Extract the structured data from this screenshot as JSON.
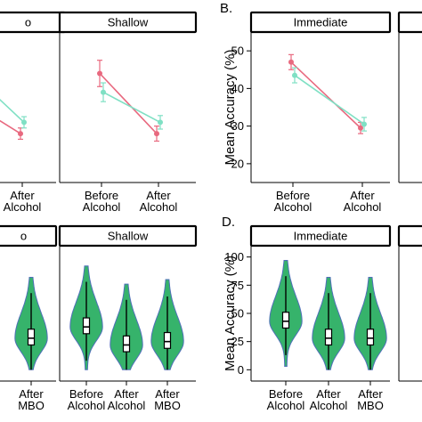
{
  "colors": {
    "red": "#e8697f",
    "teal": "#7fe0c4",
    "violin_fill": "#36b36b",
    "violin_stroke": "#4f6fb8"
  },
  "panels": {
    "B": {
      "letter": "B."
    },
    "D": {
      "letter": "D."
    }
  },
  "chart_data": [
    {
      "id": "top-left",
      "type": "line",
      "strip": "o",
      "categories": [
        "Before\nAlcohol",
        "After\nAlcohol"
      ],
      "ylim": [
        15,
        55
      ],
      "series": [
        {
          "color": "red",
          "values": [
            null,
            28
          ],
          "errors": [
            null,
            1.5
          ]
        },
        {
          "color": "teal",
          "values": [
            null,
            31
          ],
          "errors": [
            null,
            1.5
          ]
        }
      ],
      "x_labels": [
        "",
        "After\nAlcohol"
      ]
    },
    {
      "id": "top-shallow",
      "type": "line",
      "strip": "Shallow",
      "categories": [
        "Before\nAlcohol",
        "After\nAlcohol"
      ],
      "ylim": [
        15,
        55
      ],
      "series": [
        {
          "color": "red",
          "values": [
            44,
            28
          ],
          "errors": [
            3.5,
            2
          ]
        },
        {
          "color": "teal",
          "values": [
            39,
            31
          ],
          "errors": [
            2.5,
            1.8
          ]
        }
      ]
    },
    {
      "id": "top-immediate",
      "type": "line",
      "panel": "B",
      "strip": "Immediate",
      "categories": [
        "Before\nAlcohol",
        "After\nAlcohol"
      ],
      "ylim": [
        15,
        55
      ],
      "yticks": [
        20,
        30,
        40,
        50
      ],
      "ylabel": "Mean Accuracy (%)",
      "series": [
        {
          "color": "red",
          "values": [
            47,
            29.5
          ],
          "errors": [
            2,
            1.5
          ]
        },
        {
          "color": "teal",
          "values": [
            43.5,
            30.5
          ],
          "errors": [
            2,
            1.8
          ]
        }
      ]
    },
    {
      "id": "bottom-left",
      "type": "violin",
      "strip": "o",
      "categories": [
        "",
        "After\nMBO"
      ],
      "ylim": [
        -10,
        110
      ],
      "median": [
        null,
        28
      ]
    },
    {
      "id": "bottom-shallow",
      "type": "violin",
      "strip": "Shallow",
      "categories": [
        "Before\nAlcohol",
        "After\nAlcohol",
        "After\nMBO"
      ],
      "ylim": [
        -10,
        110
      ],
      "median": [
        38,
        22,
        25
      ]
    },
    {
      "id": "bottom-immediate",
      "type": "violin",
      "panel": "D",
      "strip": "Immediate",
      "categories": [
        "Before\nAlcohol",
        "After\nAlcohol",
        "After\nMBO"
      ],
      "ylim": [
        -10,
        110
      ],
      "yticks": [
        0,
        25,
        50,
        75,
        100
      ],
      "ylabel": "Mean Accuracy (%)",
      "median": [
        43,
        28,
        28
      ]
    }
  ]
}
